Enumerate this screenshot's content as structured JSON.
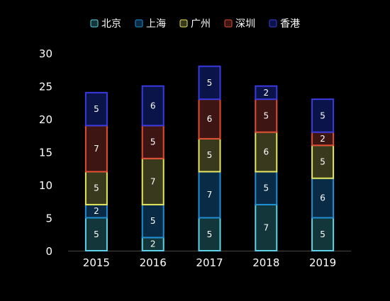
{
  "chart_data": {
    "type": "bar",
    "stacked": true,
    "categories": [
      "2015",
      "2016",
      "2017",
      "2018",
      "2019"
    ],
    "series": [
      {
        "name": "北京",
        "values": [
          5,
          2,
          5,
          7,
          5
        ],
        "fill": "#12363a",
        "stroke": "#5fd3e6"
      },
      {
        "name": "上海",
        "values": [
          2,
          5,
          7,
          5,
          6
        ],
        "fill": "#0a2b45",
        "stroke": "#1f8fd4"
      },
      {
        "name": "广州",
        "values": [
          5,
          7,
          5,
          6,
          5
        ],
        "fill": "#39391d",
        "stroke": "#e6e65a"
      },
      {
        "name": "深圳",
        "values": [
          7,
          5,
          6,
          5,
          2
        ],
        "fill": "#3d1512",
        "stroke": "#e04c35"
      },
      {
        "name": "香港",
        "values": [
          5,
          6,
          5,
          2,
          5
        ],
        "fill": "#0b1448",
        "stroke": "#3a3ae0"
      }
    ],
    "ylim": [
      0,
      30
    ],
    "yticks": [
      0,
      5,
      10,
      15,
      20,
      25,
      30
    ],
    "grid": false,
    "legend": "top-center",
    "data_labels": true
  }
}
